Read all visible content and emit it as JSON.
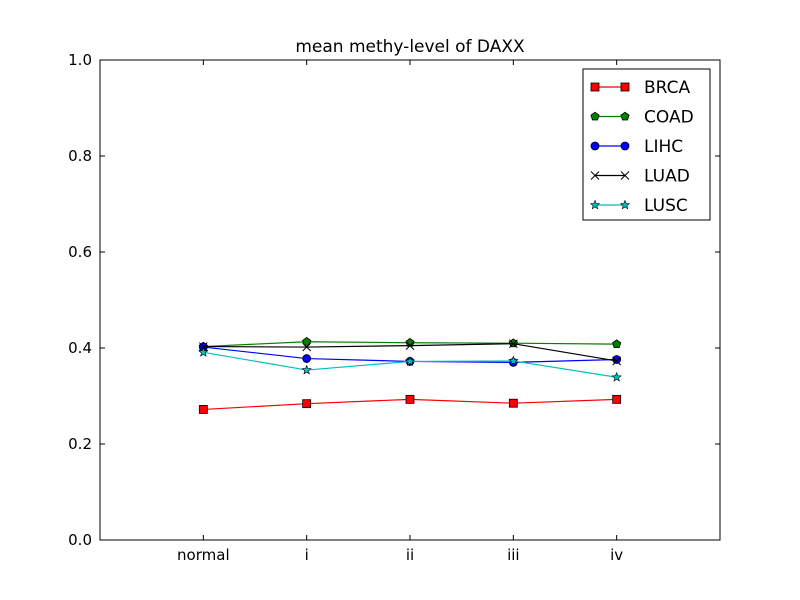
{
  "chart_data": {
    "type": "line",
    "title": "mean methy-level of DAXX",
    "xlabel": "",
    "ylabel": "",
    "categories": [
      "normal",
      "i",
      "ii",
      "iii",
      "iv"
    ],
    "ylim": [
      0.0,
      1.0
    ],
    "yticks": [
      "0.0",
      "0.2",
      "0.4",
      "0.6",
      "0.8",
      "1.0"
    ],
    "grid": false,
    "legend_position": "top-right",
    "series": [
      {
        "name": "BRCA",
        "color": "#ff0000",
        "marker": "square",
        "values": [
          0.272,
          0.284,
          0.293,
          0.285,
          0.293
        ]
      },
      {
        "name": "COAD",
        "color": "#008000",
        "marker": "pentagon",
        "values": [
          0.403,
          0.413,
          0.411,
          0.41,
          0.408
        ]
      },
      {
        "name": "LIHC",
        "color": "#0000ff",
        "marker": "circle",
        "values": [
          0.402,
          0.378,
          0.372,
          0.37,
          0.376
        ]
      },
      {
        "name": "LUAD",
        "color": "#000000",
        "marker": "x",
        "values": [
          0.403,
          0.402,
          0.405,
          0.409,
          0.373
        ]
      },
      {
        "name": "LUSC",
        "color": "#00bfbf",
        "marker": "star",
        "values": [
          0.391,
          0.354,
          0.372,
          0.373,
          0.339
        ]
      }
    ]
  }
}
